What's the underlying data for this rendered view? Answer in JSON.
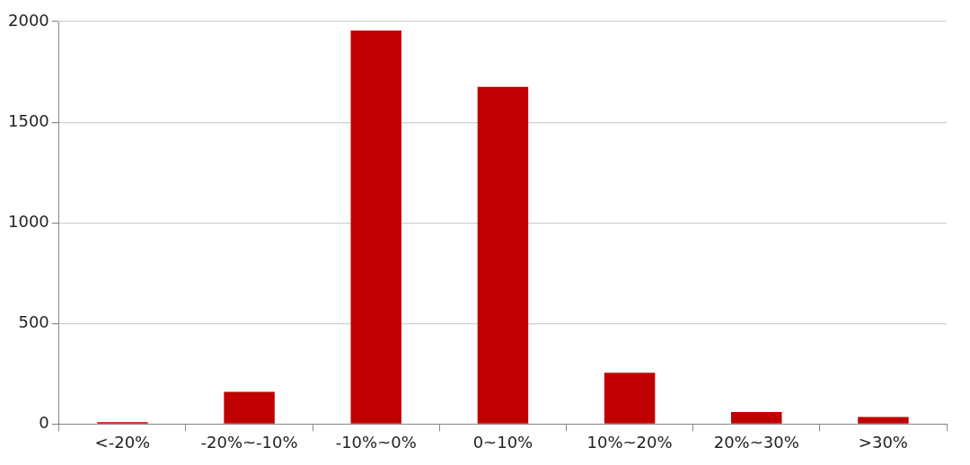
{
  "chart_data": {
    "type": "bar",
    "categories": [
      "<-20%",
      "-20%~-10%",
      "-10%~0%",
      "0~10%",
      "10%~20%",
      "20%~30%",
      ">30%"
    ],
    "values": [
      10,
      160,
      1955,
      1675,
      255,
      60,
      35
    ],
    "color": "#c00000",
    "ylim": [
      0,
      2000
    ],
    "yticks": [
      0,
      500,
      1000,
      1500,
      2000
    ],
    "grid": "y",
    "legend": false
  }
}
